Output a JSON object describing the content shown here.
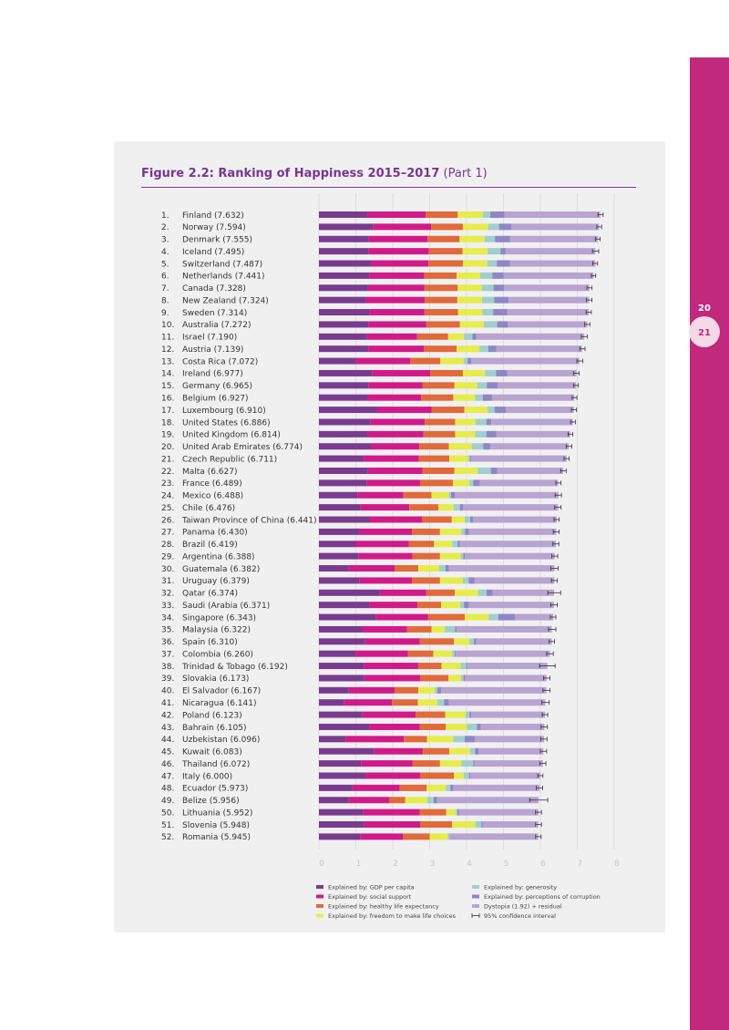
{
  "page": {
    "number_left": "20",
    "number_right": "21"
  },
  "figure": {
    "title_bold": "Figure 2.2: Ranking of Happiness 2015–2017",
    "title_suffix": "(Part 1)"
  },
  "colors": {
    "gdp": "#7a3b8f",
    "social": "#d11a8a",
    "health": "#e06a3a",
    "freedom": "#e6ec4a",
    "generosity": "#9fcfcf",
    "corruption": "#8f86c6",
    "dystopia": "#b9a3d1",
    "ci": "#333333",
    "sidebar": "#c0297c",
    "title": "#7a3590"
  },
  "chart_data": {
    "type": "bar",
    "orientation": "horizontal",
    "stacked": true,
    "title": "Figure 2.2: Ranking of Happiness 2015–2017 (Part 1)",
    "xlim": [
      0,
      8
    ],
    "xticks": [
      "0",
      "1",
      "2",
      "3",
      "4",
      "5",
      "6",
      "7",
      "8"
    ],
    "series_names": [
      "gdp",
      "social",
      "health",
      "freedom",
      "generosity",
      "corruption",
      "dystopia"
    ],
    "legend": [
      {
        "key": "gdp",
        "label": "Explained by: GDP per capita"
      },
      {
        "key": "social",
        "label": "Explained by: social support"
      },
      {
        "key": "health",
        "label": "Explained by: healthy life expectancy"
      },
      {
        "key": "freedom",
        "label": "Explained by: freedom to make life choices"
      },
      {
        "key": "generosity",
        "label": "Explained by: generosity"
      },
      {
        "key": "corruption",
        "label": "Explained by: perceptions of corruption"
      },
      {
        "key": "dystopia",
        "label": "Dystopia (1.92) + residual"
      },
      {
        "key": "ci",
        "label": "95% confidence interval"
      }
    ],
    "rows": [
      {
        "label": "1.",
        "name": "Finland (7.632)",
        "total": 7.632,
        "ci": [
          7.56,
          7.7
        ],
        "parts": [
          1.31,
          1.58,
          0.87,
          0.68,
          0.2,
          0.39,
          2.59
        ]
      },
      {
        "label": "2.",
        "name": "Norway (7.594)",
        "total": 7.594,
        "ci": [
          7.53,
          7.66
        ],
        "parts": [
          1.46,
          1.58,
          0.86,
          0.69,
          0.29,
          0.34,
          2.37
        ]
      },
      {
        "label": "3.",
        "name": "Denmark (7.555)",
        "total": 7.555,
        "ci": [
          7.49,
          7.62
        ],
        "parts": [
          1.35,
          1.59,
          0.87,
          0.68,
          0.28,
          0.41,
          2.38
        ]
      },
      {
        "label": "4.",
        "name": "Iceland (7.495)",
        "total": 7.495,
        "ci": [
          7.41,
          7.58
        ],
        "parts": [
          1.34,
          1.64,
          0.91,
          0.68,
          0.35,
          0.14,
          2.43
        ]
      },
      {
        "label": "5.",
        "name": "Switzerland (7.487)",
        "total": 7.487,
        "ci": [
          7.42,
          7.55
        ],
        "parts": [
          1.42,
          1.55,
          0.93,
          0.66,
          0.26,
          0.36,
          2.31
        ]
      },
      {
        "label": "6.",
        "name": "Netherlands (7.441)",
        "total": 7.441,
        "ci": [
          7.38,
          7.5
        ],
        "parts": [
          1.36,
          1.49,
          0.88,
          0.64,
          0.33,
          0.3,
          2.44
        ]
      },
      {
        "label": "7.",
        "name": "Canada (7.328)",
        "total": 7.328,
        "ci": [
          7.26,
          7.4
        ],
        "parts": [
          1.33,
          1.53,
          0.9,
          0.65,
          0.32,
          0.29,
          2.31
        ]
      },
      {
        "label": "8.",
        "name": "New Zealand (7.324)",
        "total": 7.324,
        "ci": [
          7.25,
          7.4
        ],
        "parts": [
          1.27,
          1.6,
          0.88,
          0.67,
          0.33,
          0.39,
          2.18
        ]
      },
      {
        "label": "9.",
        "name": "Sweden (7.314)",
        "total": 7.314,
        "ci": [
          7.24,
          7.38
        ],
        "parts": [
          1.36,
          1.5,
          0.91,
          0.66,
          0.29,
          0.38,
          2.21
        ]
      },
      {
        "label": "10.",
        "name": "Australia (7.272)",
        "total": 7.272,
        "ci": [
          7.2,
          7.34
        ],
        "parts": [
          1.34,
          1.57,
          0.91,
          0.65,
          0.36,
          0.29,
          2.15
        ]
      },
      {
        "label": "11.",
        "name": "Israel (7.190)",
        "total": 7.19,
        "ci": [
          7.11,
          7.27
        ],
        "parts": [
          1.3,
          1.36,
          0.84,
          0.43,
          0.23,
          0.1,
          2.93
        ]
      },
      {
        "label": "12.",
        "name": "Austria (7.139)",
        "total": 7.139,
        "ci": [
          7.07,
          7.21
        ],
        "parts": [
          1.34,
          1.5,
          0.89,
          0.62,
          0.24,
          0.22,
          2.32
        ]
      },
      {
        "label": "13.",
        "name": "Costa Rica (7.072)",
        "total": 7.072,
        "ci": [
          6.99,
          7.15
        ],
        "parts": [
          1.01,
          1.46,
          0.82,
          0.63,
          0.11,
          0.1,
          2.93
        ]
      },
      {
        "label": "14.",
        "name": "Ireland (6.977)",
        "total": 6.977,
        "ci": [
          6.9,
          7.05
        ],
        "parts": [
          1.44,
          1.58,
          0.88,
          0.6,
          0.3,
          0.3,
          1.88
        ]
      },
      {
        "label": "15.",
        "name": "Germany (6.965)",
        "total": 6.965,
        "ci": [
          6.9,
          7.03
        ],
        "parts": [
          1.34,
          1.47,
          0.86,
          0.62,
          0.26,
          0.29,
          2.13
        ]
      },
      {
        "label": "16.",
        "name": "Belgium (6.927)",
        "total": 6.927,
        "ci": [
          6.86,
          6.99
        ],
        "parts": [
          1.32,
          1.45,
          0.87,
          0.59,
          0.21,
          0.25,
          2.23
        ]
      },
      {
        "label": "17.",
        "name": "Luxembourg (6.910)",
        "total": 6.91,
        "ci": [
          6.84,
          6.98
        ],
        "parts": [
          1.58,
          1.47,
          0.89,
          0.63,
          0.19,
          0.31,
          1.84
        ]
      },
      {
        "label": "18.",
        "name": "United States (6.886)",
        "total": 6.886,
        "ci": [
          6.82,
          6.95
        ],
        "parts": [
          1.4,
          1.47,
          0.82,
          0.55,
          0.3,
          0.13,
          2.21
        ]
      },
      {
        "label": "19.",
        "name": "United Kingdom (6.814)",
        "total": 6.814,
        "ci": [
          6.75,
          6.88
        ],
        "parts": [
          1.31,
          1.52,
          0.86,
          0.54,
          0.31,
          0.27,
          2.0
        ]
      },
      {
        "label": "20.",
        "name": "United Arab Emirates (6.774)",
        "total": 6.774,
        "ci": [
          6.7,
          6.85
        ],
        "parts": [
          1.42,
          1.3,
          0.8,
          0.62,
          0.31,
          0.19,
          2.13
        ]
      },
      {
        "label": "21.",
        "name": "Czech Republic (6.711)",
        "total": 6.711,
        "ci": [
          6.64,
          6.78
        ],
        "parts": [
          1.22,
          1.49,
          0.82,
          0.51,
          0.05,
          0.03,
          2.59
        ]
      },
      {
        "label": "22.",
        "name": "Malta (6.627)",
        "total": 6.627,
        "ci": [
          6.55,
          6.7
        ],
        "parts": [
          1.33,
          1.48,
          0.86,
          0.63,
          0.36,
          0.17,
          1.79
        ]
      },
      {
        "label": "23.",
        "name": "France (6.489)",
        "total": 6.489,
        "ci": [
          6.42,
          6.56
        ],
        "parts": [
          1.29,
          1.45,
          0.89,
          0.45,
          0.1,
          0.18,
          2.12
        ]
      },
      {
        "label": "24.",
        "name": "Mexico (6.488)",
        "total": 6.488,
        "ci": [
          6.4,
          6.57
        ],
        "parts": [
          1.04,
          1.25,
          0.76,
          0.47,
          0.06,
          0.1,
          2.81
        ]
      },
      {
        "label": "25.",
        "name": "Chile (6.476)",
        "total": 6.476,
        "ci": [
          6.39,
          6.56
        ],
        "parts": [
          1.13,
          1.32,
          0.79,
          0.41,
          0.17,
          0.09,
          2.57
        ]
      },
      {
        "label": "26.",
        "name": "Taiwan Province of China (6.441)",
        "total": 6.441,
        "ci": [
          6.37,
          6.51
        ],
        "parts": [
          1.37,
          1.43,
          0.8,
          0.35,
          0.15,
          0.08,
          2.26
        ]
      },
      {
        "label": "27.",
        "name": "Panama (6.430)",
        "total": 6.43,
        "ci": [
          6.35,
          6.51
        ],
        "parts": [
          1.1,
          1.42,
          0.76,
          0.58,
          0.1,
          0.1,
          2.37
        ]
      },
      {
        "label": "28.",
        "name": "Brazil (6.419)",
        "total": 6.419,
        "ci": [
          6.34,
          6.5
        ],
        "parts": [
          1.0,
          1.44,
          0.68,
          0.49,
          0.15,
          0.06,
          2.6
        ]
      },
      {
        "label": "29.",
        "name": "Argentina (6.388)",
        "total": 6.388,
        "ci": [
          6.31,
          6.47
        ],
        "parts": [
          1.07,
          1.46,
          0.75,
          0.56,
          0.07,
          0.05,
          2.43
        ]
      },
      {
        "label": "30.",
        "name": "Guatemala (6.382)",
        "total": 6.382,
        "ci": [
          6.28,
          6.48
        ],
        "parts": [
          0.81,
          1.24,
          0.64,
          0.57,
          0.17,
          0.09,
          2.86
        ]
      },
      {
        "label": "31.",
        "name": "Uruguay (6.379)",
        "total": 6.379,
        "ci": [
          6.3,
          6.46
        ],
        "parts": [
          1.09,
          1.43,
          0.76,
          0.62,
          0.16,
          0.15,
          2.17
        ]
      },
      {
        "label": "32.",
        "name": "Qatar (6.374)",
        "total": 6.374,
        "ci": [
          6.2,
          6.55
        ],
        "parts": [
          1.65,
          1.26,
          0.77,
          0.63,
          0.23,
          0.17,
          1.66
        ]
      },
      {
        "label": "33.",
        "name": "Saudi (Arabia (6.371)",
        "total": 6.371,
        "ci": [
          6.28,
          6.46
        ],
        "parts": [
          1.38,
          1.29,
          0.64,
          0.52,
          0.1,
          0.13,
          2.31
        ]
      },
      {
        "label": "34.",
        "name": "Singapore (6.343)",
        "total": 6.343,
        "ci": [
          6.27,
          6.42
        ],
        "parts": [
          1.55,
          1.41,
          0.99,
          0.65,
          0.26,
          0.45,
          1.04
        ]
      },
      {
        "label": "35.",
        "name": "Malaysia (6.322)",
        "total": 6.322,
        "ci": [
          6.22,
          6.42
        ],
        "parts": [
          1.16,
          1.23,
          0.66,
          0.36,
          0.28,
          0.04,
          2.58
        ]
      },
      {
        "label": "36.",
        "name": "Spain (6.310)",
        "total": 6.31,
        "ci": [
          6.24,
          6.38
        ],
        "parts": [
          1.25,
          1.48,
          0.93,
          0.42,
          0.12,
          0.06,
          2.05
        ]
      },
      {
        "label": "37.",
        "name": "Colombia (6.260)",
        "total": 6.26,
        "ci": [
          6.17,
          6.35
        ],
        "parts": [
          0.99,
          1.42,
          0.69,
          0.51,
          0.07,
          0.03,
          2.55
        ]
      },
      {
        "label": "38.",
        "name": "Trinidad & Tobago (6.192)",
        "total": 6.192,
        "ci": [
          5.98,
          6.4
        ],
        "parts": [
          1.23,
          1.46,
          0.63,
          0.52,
          0.15,
          0.03,
          2.17
        ]
      },
      {
        "label": "39.",
        "name": "Slovakia (6.173)",
        "total": 6.173,
        "ci": [
          6.09,
          6.26
        ],
        "parts": [
          1.23,
          1.52,
          0.76,
          0.34,
          0.07,
          0.04,
          2.21
        ]
      },
      {
        "label": "40.",
        "name": "El Salvador (6.167)",
        "total": 6.167,
        "ci": [
          6.07,
          6.26
        ],
        "parts": [
          0.81,
          1.24,
          0.64,
          0.45,
          0.07,
          0.1,
          2.85
        ]
      },
      {
        "label": "41.",
        "name": "Nicaragua (6.141)",
        "total": 6.141,
        "ci": [
          6.04,
          6.24
        ],
        "parts": [
          0.67,
          1.31,
          0.7,
          0.53,
          0.18,
          0.13,
          2.61
        ]
      },
      {
        "label": "42.",
        "name": "Poland (6.123)",
        "total": 6.123,
        "ci": [
          6.05,
          6.2
        ],
        "parts": [
          1.18,
          1.44,
          0.8,
          0.55,
          0.11,
          0.05,
          2.0
        ]
      },
      {
        "label": "43.",
        "name": "Bahrain (6.105)",
        "total": 6.105,
        "ci": [
          6.02,
          6.19
        ],
        "parts": [
          1.36,
          1.37,
          0.71,
          0.57,
          0.27,
          0.11,
          1.72
        ]
      },
      {
        "label": "44.",
        "name": "Uzbekistan (6.096)",
        "total": 6.096,
        "ci": [
          6.01,
          6.18
        ],
        "parts": [
          0.72,
          1.58,
          0.63,
          0.71,
          0.31,
          0.28,
          1.87
        ]
      },
      {
        "label": "45.",
        "name": "Kuwait (6.083)",
        "total": 6.083,
        "ci": [
          6.0,
          6.17
        ],
        "parts": [
          1.5,
          1.32,
          0.71,
          0.56,
          0.14,
          0.1,
          1.75
        ]
      },
      {
        "label": "46.",
        "name": "Thailand (6.072)",
        "total": 6.072,
        "ci": [
          5.99,
          6.15
        ],
        "parts": [
          1.14,
          1.4,
          0.74,
          0.58,
          0.32,
          0.03,
          1.86
        ]
      },
      {
        "label": "47.",
        "name": "Italy (6.000)",
        "total": 6.0,
        "ci": [
          5.93,
          6.07
        ],
        "parts": [
          1.26,
          1.48,
          0.92,
          0.26,
          0.15,
          0.03,
          1.9
        ]
      },
      {
        "label": "48.",
        "name": "Ecuador (5.973)",
        "total": 5.973,
        "ci": [
          5.89,
          6.06
        ],
        "parts": [
          0.91,
          1.28,
          0.73,
          0.52,
          0.12,
          0.08,
          2.34
        ]
      },
      {
        "label": "49.",
        "name": "Belize (5.956)",
        "total": 5.956,
        "ci": [
          5.71,
          6.2
        ],
        "parts": [
          0.81,
          1.1,
          0.43,
          0.6,
          0.17,
          0.09,
          2.75
        ]
      },
      {
        "label": "50.",
        "name": "Lithuania (5.952)",
        "total": 5.952,
        "ci": [
          5.87,
          6.03
        ],
        "parts": [
          1.2,
          1.53,
          0.72,
          0.26,
          0.04,
          0.04,
          2.16
        ]
      },
      {
        "label": "51.",
        "name": "Slovenia (5.948)",
        "total": 5.948,
        "ci": [
          5.87,
          6.03
        ],
        "parts": [
          1.22,
          1.53,
          0.86,
          0.63,
          0.16,
          0.04,
          1.5
        ]
      },
      {
        "label": "52.",
        "name": "Romania (5.945)",
        "total": 5.945,
        "ci": [
          5.87,
          6.02
        ],
        "parts": [
          1.12,
          1.16,
          0.72,
          0.49,
          0.05,
          0.01,
          2.39
        ]
      }
    ]
  }
}
